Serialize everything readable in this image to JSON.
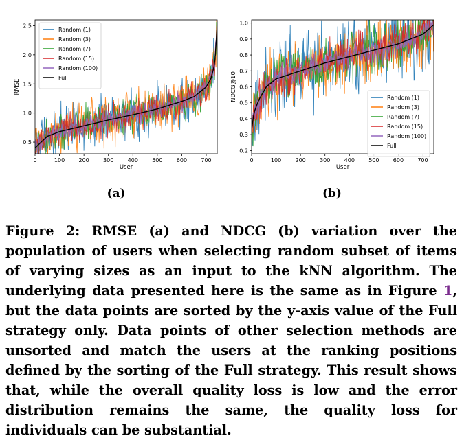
{
  "figure": {
    "sublabels": [
      "(a)",
      "(b)"
    ],
    "caption": {
      "part1": "Figure 2: RMSE (a) and NDCG (b) variation over the population of users when selecting random subset of items of varying sizes as an input to the kNN algorithm. The underlying data presented here is the same as in Figure ",
      "ref": "1",
      "part2": ", but the data points are sorted by the y-axis value of the Full strategy only. Data points of other selection methods are unsorted and match the users at the ranking positions defined by the sorting of the Full strategy. This result shows that, while the overall quality loss is low and the error distribution remains the same, the quality loss for individuals can be substantial."
    }
  },
  "colors": {
    "Random (1)": "#1f77b4",
    "Random (3)": "#ff7f0e",
    "Random (7)": "#2ca02c",
    "Random (15)": "#d62728",
    "Random (100)": "#9467bd",
    "Full": "#000000"
  },
  "chart_data": [
    {
      "type": "line",
      "xlabel": "User",
      "ylabel": "RMSE",
      "xlim": [
        0,
        745
      ],
      "ylim": [
        0.3,
        2.6
      ],
      "xticks": [
        0,
        100,
        200,
        300,
        400,
        500,
        600,
        700
      ],
      "yticks": [
        0.5,
        1.0,
        1.5,
        2.0,
        2.5
      ],
      "ytick_labels": [
        "0.5",
        "1.0",
        "1.5",
        "2.0",
        "2.5"
      ],
      "legend_position": "top-left",
      "grid": false,
      "series": [
        {
          "name": "Random (1)"
        },
        {
          "name": "Random (3)"
        },
        {
          "name": "Random (7)"
        },
        {
          "name": "Random (15)"
        },
        {
          "name": "Random (100)"
        },
        {
          "name": "Full",
          "x": [
            0,
            50,
            100,
            200,
            300,
            400,
            500,
            600,
            650,
            700,
            720,
            735,
            745
          ],
          "values": [
            0.4,
            0.6,
            0.68,
            0.78,
            0.88,
            0.97,
            1.07,
            1.2,
            1.28,
            1.45,
            1.6,
            1.85,
            2.5
          ]
        }
      ]
    },
    {
      "type": "line",
      "xlabel": "User",
      "ylabel": "NDCG@10",
      "xlim": [
        0,
        745
      ],
      "ylim": [
        0.18,
        1.02
      ],
      "xticks": [
        0,
        100,
        200,
        300,
        400,
        500,
        600,
        700
      ],
      "yticks": [
        0.2,
        0.3,
        0.4,
        0.5,
        0.6,
        0.7,
        0.8,
        0.9,
        1.0
      ],
      "ytick_labels": [
        "0.2",
        "0.3",
        "0.4",
        "0.5",
        "0.6",
        "0.7",
        "0.8",
        "0.9",
        "1.0"
      ],
      "legend_position": "lower-right",
      "grid": false,
      "series": [
        {
          "name": "Random (1)"
        },
        {
          "name": "Random (3)"
        },
        {
          "name": "Random (7)"
        },
        {
          "name": "Random (15)"
        },
        {
          "name": "Random (100)"
        },
        {
          "name": "Full",
          "x": [
            0,
            10,
            30,
            60,
            100,
            200,
            300,
            400,
            500,
            600,
            700,
            745
          ],
          "values": [
            0.33,
            0.44,
            0.52,
            0.6,
            0.65,
            0.7,
            0.75,
            0.79,
            0.83,
            0.87,
            0.93,
            0.99
          ]
        }
      ]
    }
  ]
}
